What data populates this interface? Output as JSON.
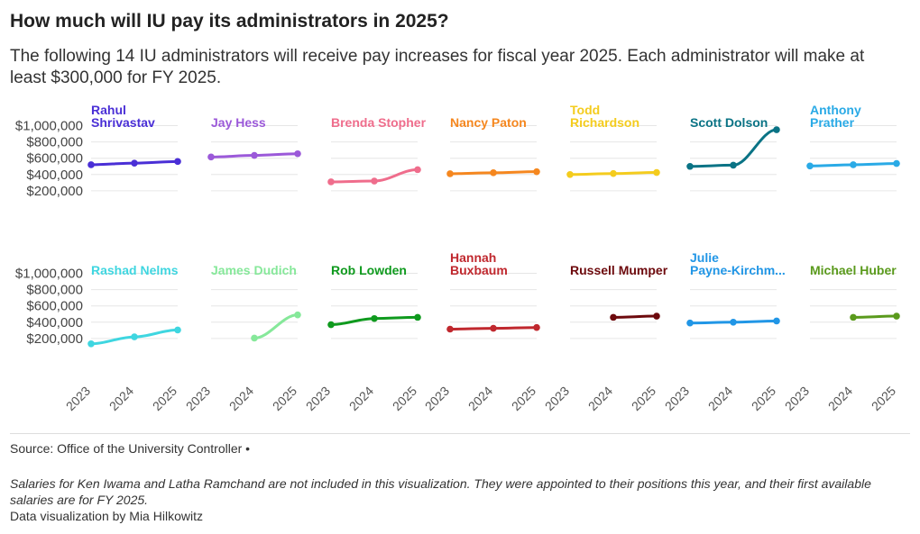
{
  "header": {
    "title": "How much will IU pay its administrators in 2025?",
    "subtitle": "The following 14 IU administrators will receive pay increases for fiscal year 2025. Each administrator will make at least $300,000 for FY 2025."
  },
  "footer": {
    "source": "Source: Office of the University Controller •",
    "note": "Salaries for Ken Iwama and Latha Ramchand are not included in this visualization. They were appointed to their positions this year, and their first available salaries are for FY 2025.",
    "credit": "Data visualization by Mia Hilkowitz"
  },
  "chart_data": {
    "type": "line",
    "layout": "small-multiples",
    "x": [
      "2023",
      "2024",
      "2025"
    ],
    "y_ticks": [
      "$1,000,000",
      "$800,000",
      "$600,000",
      "$400,000",
      "$200,000"
    ],
    "y_tick_values": [
      1000000,
      800000,
      600000,
      400000,
      200000
    ],
    "ylim": [
      0,
      1050000
    ],
    "series": [
      {
        "name": "Rahul Shrivastav",
        "label_lines": [
          "Rahul",
          "Shrivastav"
        ],
        "color": "#4a2fd6",
        "values": [
          520000,
          540000,
          560000
        ]
      },
      {
        "name": "Jay Hess",
        "label_lines": [
          "Jay Hess"
        ],
        "color": "#9b59d9",
        "values": [
          615000,
          635000,
          655000
        ]
      },
      {
        "name": "Brenda Stopher",
        "label_lines": [
          "Brenda Stopher"
        ],
        "color": "#ef6d8c",
        "values": [
          310000,
          320000,
          460000
        ]
      },
      {
        "name": "Nancy Paton",
        "label_lines": [
          "Nancy Paton"
        ],
        "color": "#f5871f",
        "values": [
          410000,
          422000,
          435000
        ]
      },
      {
        "name": "Todd Richardson",
        "label_lines": [
          "Todd",
          "Richardson"
        ],
        "color": "#f4cc1e",
        "values": [
          400000,
          412000,
          425000
        ]
      },
      {
        "name": "Scott Dolson",
        "label_lines": [
          "Scott Dolson"
        ],
        "color": "#0a7385",
        "values": [
          500000,
          515000,
          950000
        ]
      },
      {
        "name": "Anthony Prather",
        "label_lines": [
          "Anthony",
          "Prather"
        ],
        "color": "#2aaae6",
        "values": [
          505000,
          520000,
          535000
        ]
      },
      {
        "name": "Rashad Nelms",
        "label_lines": [
          "Rashad Nelms"
        ],
        "color": "#3fd6e0",
        "values": [
          135000,
          220000,
          305000
        ]
      },
      {
        "name": "James Dudich",
        "label_lines": [
          "James Dudich"
        ],
        "color": "#86e89a",
        "values": [
          null,
          205000,
          490000
        ]
      },
      {
        "name": "Rob Lowden",
        "label_lines": [
          "Rob Lowden"
        ],
        "color": "#0f9a1e",
        "values": [
          370000,
          445000,
          460000
        ]
      },
      {
        "name": "Hannah Buxbaum",
        "label_lines": [
          "Hannah",
          "Buxbaum"
        ],
        "color": "#c0282e",
        "values": [
          315000,
          325000,
          335000
        ]
      },
      {
        "name": "Russell Mumper",
        "label_lines": [
          "Russell Mumper"
        ],
        "color": "#6d0a0d",
        "values": [
          null,
          460000,
          475000
        ]
      },
      {
        "name": "Julie Payne-Kirchm...",
        "label_lines": [
          "Julie",
          "Payne-Kirchm..."
        ],
        "color": "#2196e6",
        "values": [
          390000,
          400000,
          415000
        ]
      },
      {
        "name": "Michael Huber",
        "label_lines": [
          "Michael Huber"
        ],
        "color": "#5a9a1c",
        "values": [
          null,
          460000,
          475000
        ]
      }
    ]
  }
}
